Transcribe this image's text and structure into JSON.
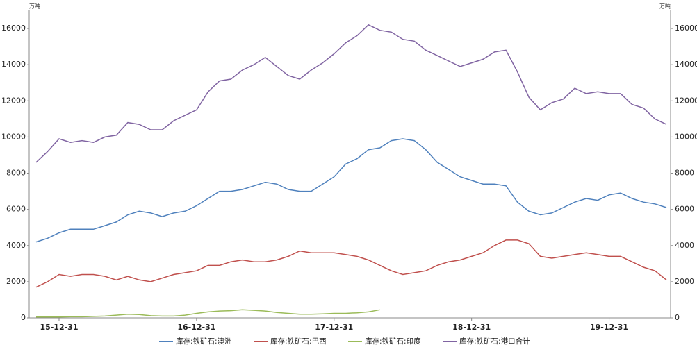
{
  "chart_data": {
    "type": "line",
    "y_unit": "万吨",
    "y2_unit": "万吨",
    "categories": [
      null,
      null,
      "15-12-31",
      null,
      null,
      null,
      null,
      null,
      null,
      null,
      null,
      null,
      null,
      null,
      "16-12-31",
      null,
      null,
      null,
      null,
      null,
      null,
      null,
      null,
      null,
      null,
      null,
      "17-12-31",
      null,
      null,
      null,
      null,
      null,
      null,
      null,
      null,
      null,
      null,
      null,
      "18-12-31",
      null,
      null,
      null,
      null,
      null,
      null,
      null,
      null,
      null,
      null,
      null,
      "19-12-31",
      null,
      null,
      null,
      null,
      null
    ],
    "series": [
      {
        "name": "库存:铁矿石:澳洲",
        "color": "#4f81bd",
        "values": [
          4200,
          4400,
          4700,
          4900,
          4900,
          4900,
          5100,
          5300,
          5700,
          5900,
          5800,
          5600,
          5800,
          5900,
          6200,
          6600,
          7000,
          7000,
          7100,
          7300,
          7500,
          7400,
          7100,
          7000,
          7000,
          7400,
          7800,
          8500,
          8800,
          9300,
          9400,
          9800,
          9900,
          9800,
          9300,
          8600,
          8200,
          7800,
          7600,
          7400,
          7400,
          7300,
          6400,
          5900,
          5700,
          5800,
          6100,
          6400,
          6600,
          6500,
          6800,
          6900,
          6600,
          6400,
          6300,
          6100
        ]
      },
      {
        "name": "库存:铁矿石:巴西",
        "color": "#c0504d",
        "values": [
          1700,
          2000,
          2400,
          2300,
          2400,
          2400,
          2300,
          2100,
          2300,
          2100,
          2000,
          2200,
          2400,
          2500,
          2600,
          2900,
          2900,
          3100,
          3200,
          3100,
          3100,
          3200,
          3400,
          3700,
          3600,
          3600,
          3600,
          3500,
          3400,
          3200,
          2900,
          2600,
          2400,
          2500,
          2600,
          2900,
          3100,
          3200,
          3400,
          3600,
          4000,
          4300,
          4300,
          4100,
          3400,
          3300,
          3400,
          3500,
          3600,
          3500,
          3400,
          3400,
          3100,
          2800,
          2600,
          2100
        ]
      },
      {
        "name": "库存:铁矿石:印度",
        "color": "#9bbb59",
        "values": [
          50,
          50,
          50,
          60,
          60,
          80,
          100,
          150,
          200,
          180,
          120,
          100,
          100,
          150,
          250,
          330,
          380,
          400,
          450,
          420,
          380,
          300,
          250,
          200,
          200,
          220,
          250,
          250,
          280,
          330,
          450,
          null,
          null,
          null,
          null,
          null,
          null,
          null,
          null,
          null,
          null,
          null,
          null,
          null,
          null,
          null,
          null,
          null,
          null,
          null,
          null,
          null,
          null,
          null,
          null,
          null
        ]
      },
      {
        "name": "库存:铁矿石:港口合计",
        "color": "#8064a2",
        "values": [
          8600,
          9200,
          9900,
          9700,
          9800,
          9700,
          10000,
          10100,
          10800,
          10700,
          10400,
          10400,
          10900,
          11200,
          11500,
          12500,
          13100,
          13200,
          13700,
          14000,
          14400,
          13900,
          13400,
          13200,
          13700,
          14100,
          14600,
          15200,
          15600,
          16200,
          15900,
          15800,
          15400,
          15300,
          14800,
          14500,
          14200,
          13900,
          14100,
          14300,
          14700,
          14800,
          13600,
          12200,
          11500,
          11900,
          12100,
          12700,
          12400,
          12500,
          12400,
          12400,
          11800,
          11600,
          11000,
          10700
        ]
      }
    ],
    "ylim": [
      0,
      17000
    ],
    "yticks": [
      0,
      2000,
      4000,
      6000,
      8000,
      10000,
      12000,
      14000,
      16000
    ],
    "y2lim": [
      0,
      17000
    ],
    "y2ticks": [
      0,
      2000,
      4000,
      6000,
      8000,
      10000,
      12000,
      14000,
      16000
    ],
    "grid": false,
    "legend": "bottom"
  }
}
